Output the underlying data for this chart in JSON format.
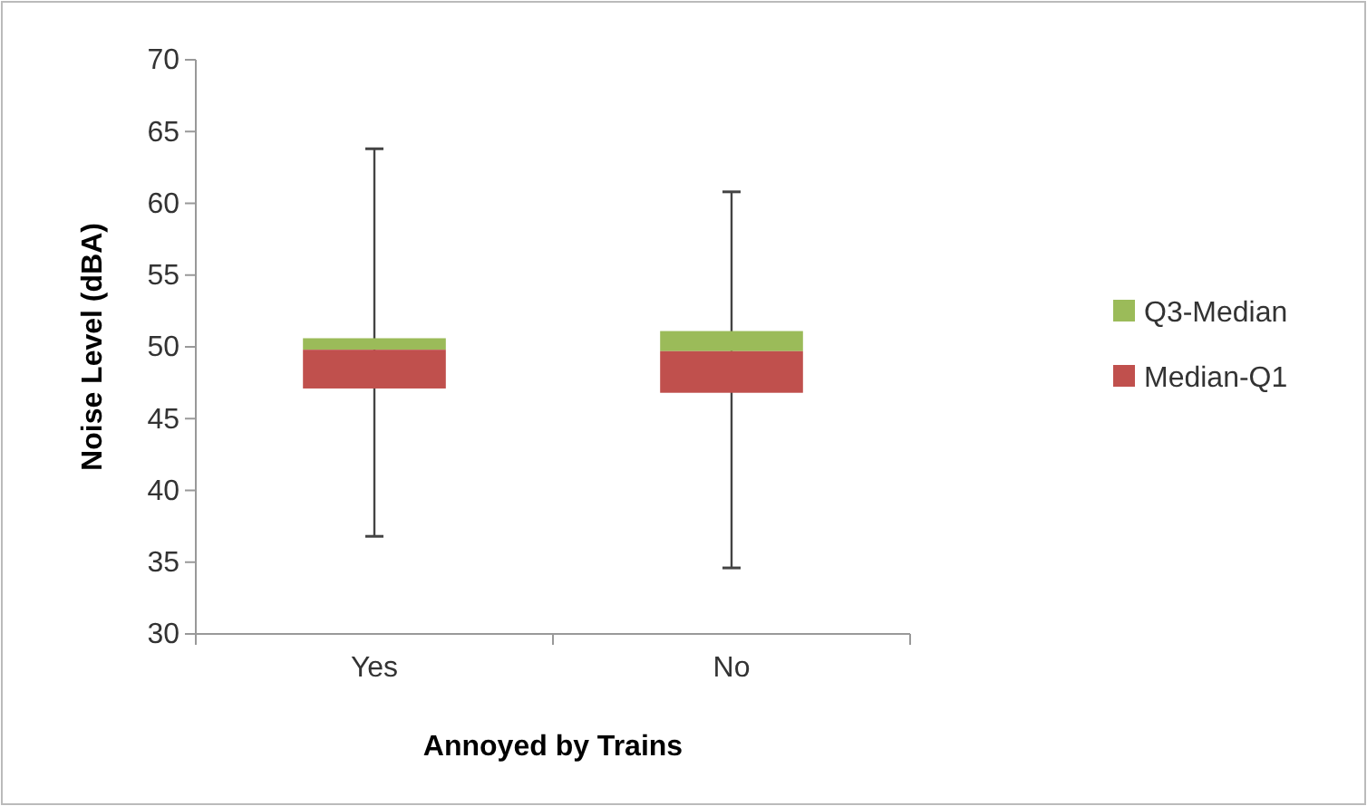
{
  "chart_data": {
    "type": "bar",
    "xlabel": "Annoyed by Trains",
    "ylabel": "Noise Level (dBA)",
    "categories": [
      "Yes",
      "No"
    ],
    "series": [
      {
        "name": "Q3-Median",
        "color": "#9bbb59",
        "base": [
          49.8,
          49.7
        ],
        "values": [
          0.8,
          1.4
        ]
      },
      {
        "name": "Median-Q1",
        "color": "#c0504d",
        "base": [
          47.1,
          46.8
        ],
        "values": [
          2.7,
          2.9
        ],
        "errors": [
          [
            36.8,
            63.8
          ],
          [
            34.6,
            60.8
          ]
        ]
      }
    ],
    "ylim": [
      30,
      70
    ],
    "yticks": [
      30,
      35,
      40,
      45,
      50,
      55,
      60,
      65,
      70
    ],
    "grid": false,
    "legend": "right"
  }
}
